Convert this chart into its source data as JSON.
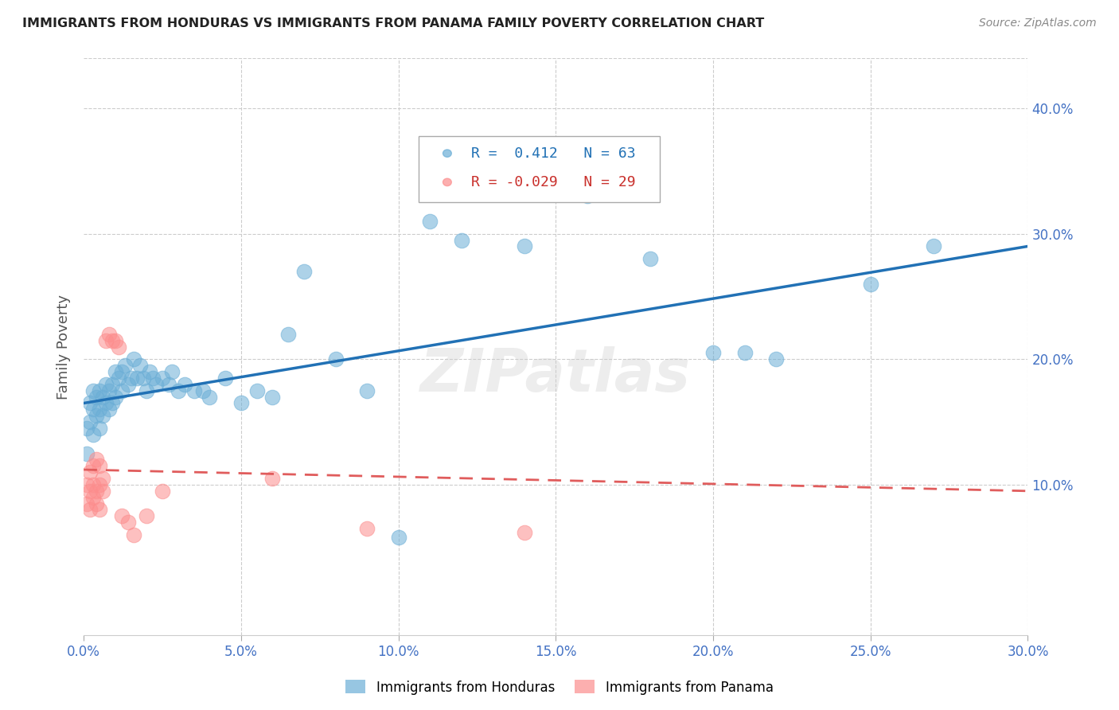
{
  "title": "IMMIGRANTS FROM HONDURAS VS IMMIGRANTS FROM PANAMA FAMILY POVERTY CORRELATION CHART",
  "source": "Source: ZipAtlas.com",
  "ylabel_label": "Family Poverty",
  "xlim": [
    0.0,
    0.3
  ],
  "ylim": [
    -0.02,
    0.44
  ],
  "xticks": [
    0.0,
    0.05,
    0.1,
    0.15,
    0.2,
    0.25,
    0.3
  ],
  "yticks": [
    0.1,
    0.2,
    0.3,
    0.4
  ],
  "ytick_labels": [
    "10.0%",
    "20.0%",
    "30.0%",
    "40.0%"
  ],
  "xtick_labels": [
    "0.0%",
    "5.0%",
    "10.0%",
    "15.0%",
    "20.0%",
    "25.0%",
    "30.0%"
  ],
  "legend1_r": "0.412",
  "legend1_n": "63",
  "legend2_r": "-0.029",
  "legend2_n": "29",
  "series1_color": "#6baed6",
  "series2_color": "#fc8d8d",
  "trend1_color": "#2171b5",
  "trend2_color": "#e05c5c",
  "grid_color": "#cccccc",
  "background_color": "#ffffff",
  "watermark": "ZIPatlas",
  "honduras_x": [
    0.001,
    0.001,
    0.002,
    0.002,
    0.003,
    0.003,
    0.003,
    0.004,
    0.004,
    0.005,
    0.005,
    0.005,
    0.006,
    0.006,
    0.007,
    0.007,
    0.008,
    0.008,
    0.009,
    0.009,
    0.01,
    0.01,
    0.011,
    0.012,
    0.012,
    0.013,
    0.014,
    0.015,
    0.016,
    0.017,
    0.018,
    0.019,
    0.02,
    0.021,
    0.022,
    0.023,
    0.025,
    0.027,
    0.028,
    0.03,
    0.032,
    0.035,
    0.038,
    0.04,
    0.045,
    0.05,
    0.055,
    0.06,
    0.065,
    0.07,
    0.08,
    0.09,
    0.1,
    0.11,
    0.12,
    0.14,
    0.16,
    0.18,
    0.2,
    0.21,
    0.22,
    0.25,
    0.27
  ],
  "honduras_y": [
    0.125,
    0.145,
    0.15,
    0.165,
    0.14,
    0.16,
    0.175,
    0.155,
    0.17,
    0.145,
    0.16,
    0.175,
    0.155,
    0.17,
    0.165,
    0.18,
    0.16,
    0.175,
    0.165,
    0.18,
    0.17,
    0.19,
    0.185,
    0.175,
    0.19,
    0.195,
    0.18,
    0.185,
    0.2,
    0.185,
    0.195,
    0.185,
    0.175,
    0.19,
    0.185,
    0.18,
    0.185,
    0.18,
    0.19,
    0.175,
    0.18,
    0.175,
    0.175,
    0.17,
    0.185,
    0.165,
    0.175,
    0.17,
    0.22,
    0.27,
    0.2,
    0.175,
    0.058,
    0.31,
    0.295,
    0.29,
    0.33,
    0.28,
    0.205,
    0.205,
    0.2,
    0.26,
    0.29
  ],
  "panama_x": [
    0.001,
    0.001,
    0.002,
    0.002,
    0.002,
    0.003,
    0.003,
    0.003,
    0.004,
    0.004,
    0.004,
    0.005,
    0.005,
    0.005,
    0.006,
    0.006,
    0.007,
    0.008,
    0.009,
    0.01,
    0.011,
    0.012,
    0.014,
    0.016,
    0.02,
    0.025,
    0.06,
    0.09,
    0.14
  ],
  "panama_y": [
    0.1,
    0.085,
    0.095,
    0.11,
    0.08,
    0.115,
    0.1,
    0.09,
    0.12,
    0.095,
    0.085,
    0.115,
    0.1,
    0.08,
    0.095,
    0.105,
    0.215,
    0.22,
    0.215,
    0.215,
    0.21,
    0.075,
    0.07,
    0.06,
    0.075,
    0.095,
    0.105,
    0.065,
    0.062
  ],
  "trend1_x0": 0.0,
  "trend1_x1": 0.3,
  "trend1_y0": 0.165,
  "trend1_y1": 0.29,
  "trend2_x0": 0.0,
  "trend2_x1": 0.3,
  "trend2_y0": 0.112,
  "trend2_y1": 0.095
}
